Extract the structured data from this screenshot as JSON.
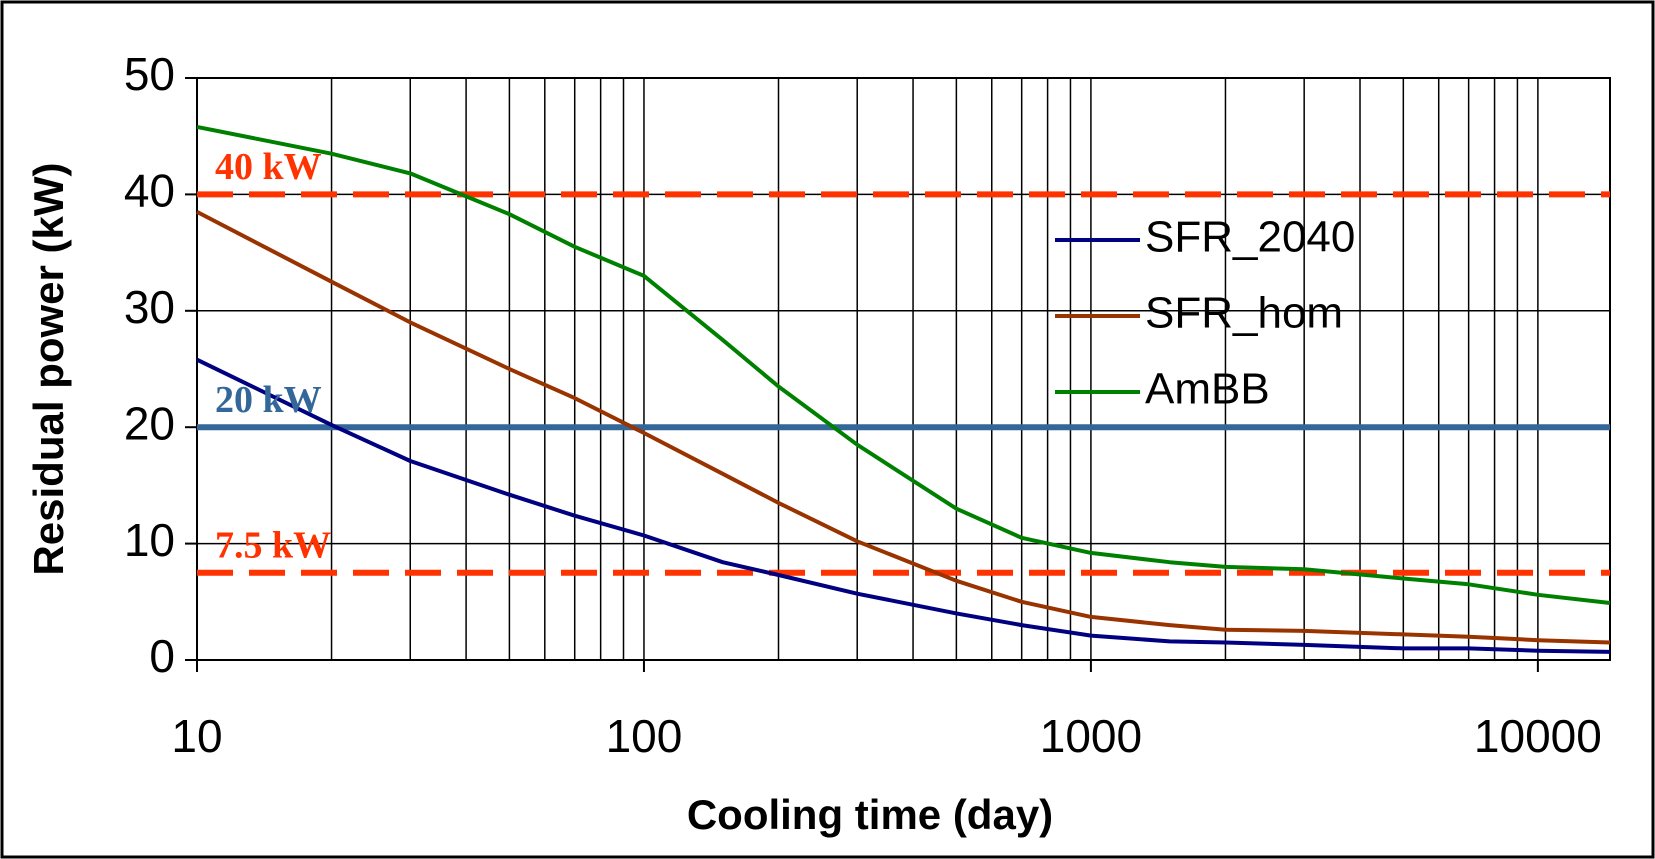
{
  "chart_data": {
    "type": "line",
    "x_label": "Cooling time (day)",
    "y_label": "Residual power (kW)",
    "xscale": "log",
    "xlim": [
      10,
      14500
    ],
    "xticks": [
      10,
      100,
      1000,
      10000
    ],
    "ylim": [
      0,
      50
    ],
    "yticks": [
      0,
      10,
      20,
      30,
      40,
      50
    ],
    "grid": true,
    "legend": "right",
    "x": [
      10,
      20,
      30,
      50,
      70,
      100,
      150,
      200,
      300,
      500,
      700,
      1000,
      1500,
      2000,
      3000,
      5000,
      7000,
      10000,
      14500
    ],
    "series": [
      {
        "name": "SFR_2040",
        "color": "#000080",
        "values": [
          25.8,
          20.2,
          17.1,
          14.2,
          12.4,
          10.7,
          8.4,
          7.3,
          5.7,
          4.0,
          3.0,
          2.1,
          1.6,
          1.5,
          1.3,
          1.0,
          1.0,
          0.8,
          0.7
        ]
      },
      {
        "name": "SFR_hom",
        "color": "#993300",
        "values": [
          38.5,
          32.5,
          29.0,
          25.0,
          22.5,
          19.5,
          16.0,
          13.5,
          10.2,
          6.8,
          5.0,
          3.7,
          3.0,
          2.6,
          2.5,
          2.2,
          2.0,
          1.7,
          1.5
        ]
      },
      {
        "name": "AmBB",
        "color": "#008000",
        "values": [
          45.8,
          43.5,
          41.8,
          38.3,
          35.5,
          33.0,
          27.5,
          23.5,
          18.5,
          13.0,
          10.5,
          9.2,
          8.4,
          8.0,
          7.8,
          7.0,
          6.5,
          5.6,
          4.9
        ]
      }
    ],
    "reference_lines": [
      {
        "value": 40,
        "label": "40 kW",
        "color": "#ff3300",
        "style": "dashed"
      },
      {
        "value": 20,
        "label": "20 kW",
        "color": "#336699",
        "style": "solid"
      },
      {
        "value": 7.5,
        "label": "7.5 kW",
        "color": "#ff3300",
        "style": "dashed"
      }
    ]
  }
}
